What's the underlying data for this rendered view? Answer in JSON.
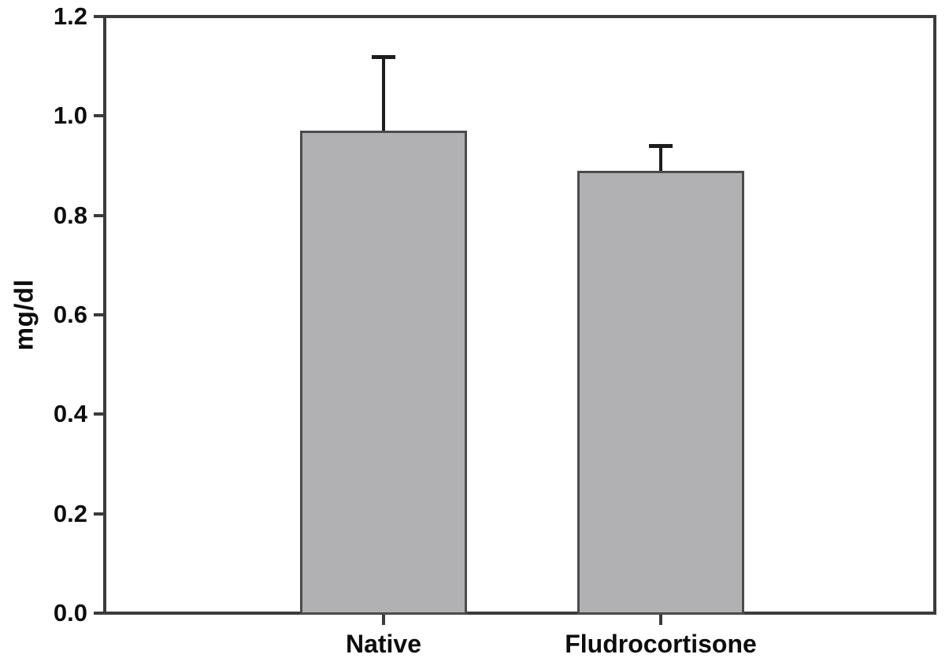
{
  "chart_data": {
    "type": "bar",
    "categories": [
      "Native",
      "Fludrocortisone"
    ],
    "values": [
      0.97,
      0.89
    ],
    "errors_plus": [
      0.15,
      0.05
    ],
    "title": "",
    "xlabel": "",
    "ylabel": "mg/dl",
    "ylim": [
      0,
      1.2
    ],
    "yticks": [
      0.0,
      0.2,
      0.4,
      0.6,
      0.8,
      1.0,
      1.2
    ],
    "ytick_labels": [
      "0.0",
      "0.2",
      "0.4",
      "0.6",
      "0.8",
      "1.0",
      "1.2"
    ],
    "grid": false,
    "legend": null,
    "bar_fill_color": "#b1b1b3",
    "bar_border_color": "#4b4b4b",
    "frame_color": "#3b3b3b",
    "error_bar_color": "#1d1d1d",
    "text_color": "#0d0d0d",
    "background_color": "#ffffff"
  }
}
